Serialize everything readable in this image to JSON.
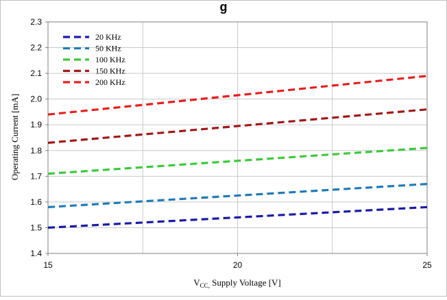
{
  "chart_data": {
    "type": "line",
    "title": "g",
    "xlabel": {
      "prefix": "V",
      "subscript": "CC,",
      "rest": " Supply Voltage  [V]"
    },
    "ylabel": "Operating  Current  [mA]",
    "xlim": [
      15,
      25
    ],
    "ylim": [
      1.4,
      2.3
    ],
    "x_ticks": [
      "15",
      "20",
      "25"
    ],
    "x_minor_grid": [
      17.5,
      22.5
    ],
    "y_ticks": [
      "1.4",
      "1.5",
      "1.6",
      "1.7",
      "1.8",
      "1.9",
      "2.0",
      "2.1",
      "2.2",
      "2.3"
    ],
    "grid": true,
    "legend_position": "top-left",
    "x": [
      15,
      25
    ],
    "series": [
      {
        "name": "20 KHz",
        "color": "#1a1aa6",
        "values": [
          1.5,
          1.58
        ]
      },
      {
        "name": "50 KHz",
        "color": "#1f7ab8",
        "values": [
          1.58,
          1.67
        ]
      },
      {
        "name": "100 KHz",
        "color": "#3cc83c",
        "values": [
          1.71,
          1.81
        ]
      },
      {
        "name": "150 KHz",
        "color": "#a01818",
        "values": [
          1.83,
          1.96
        ]
      },
      {
        "name": "200 KHz",
        "color": "#e61e1e",
        "values": [
          1.94,
          2.09
        ]
      }
    ]
  }
}
